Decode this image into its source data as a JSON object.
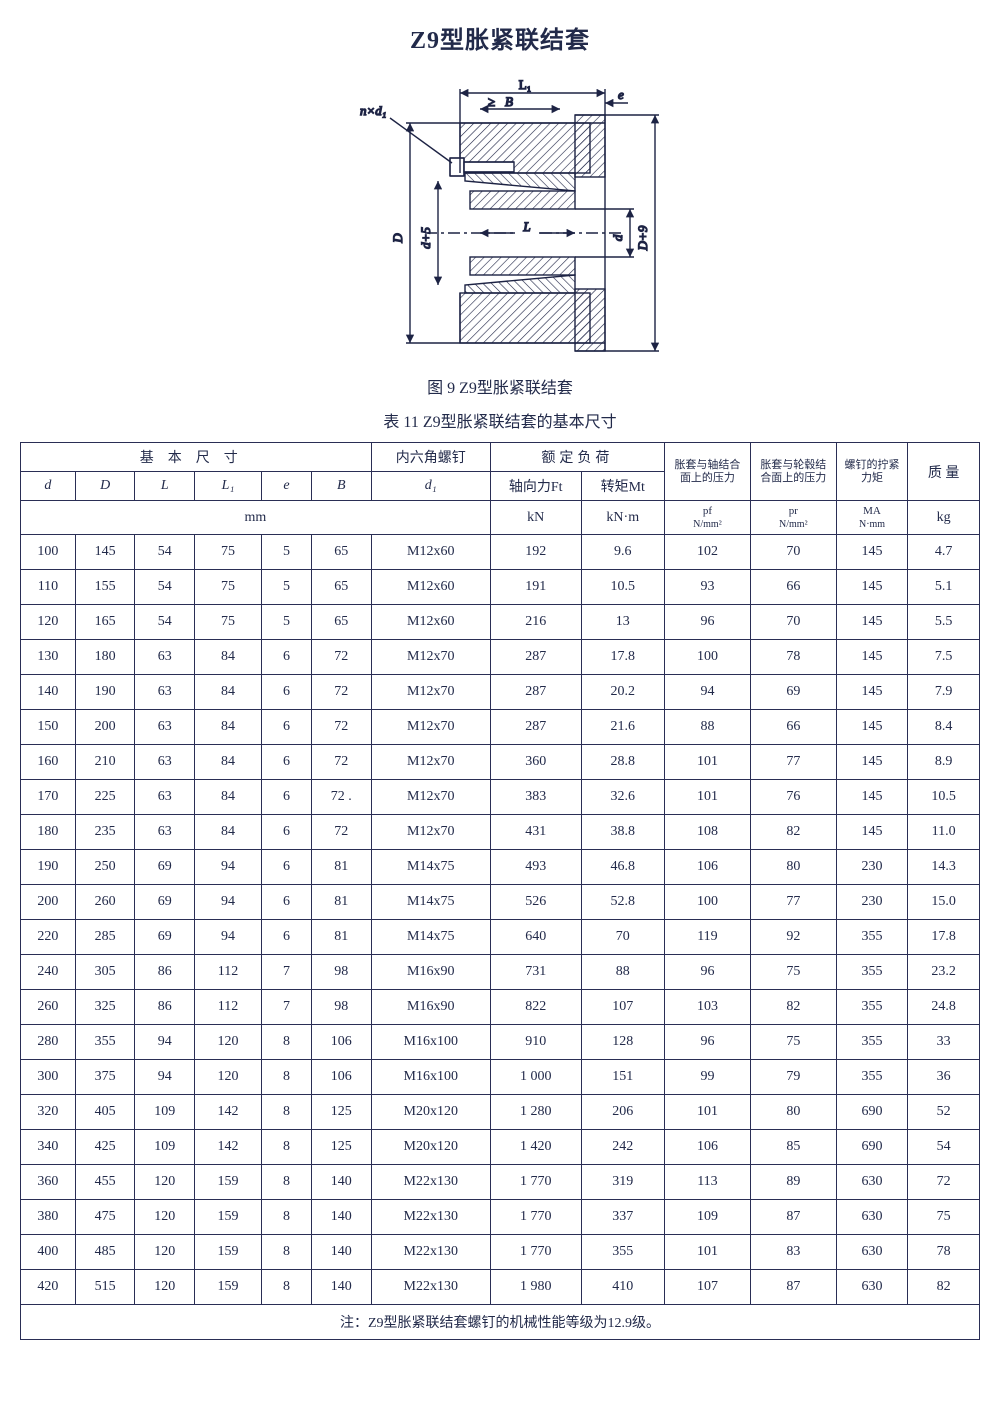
{
  "title": "Z9型胀紧联结套",
  "figure_caption": "图 9 Z9型胀紧联结套",
  "table_caption": "表 11 Z9型胀紧联结套的基本尺寸",
  "diagram": {
    "labels": {
      "nxd1": "n×d₁",
      "L1": "L₁",
      "B": "B",
      "arrow": "≥",
      "e": "e",
      "D": "D",
      "D_plus_9": "D+9",
      "d": "d",
      "d_plus_5": "d+5",
      "L": "L"
    },
    "stroke": "#1d2344",
    "hatch": "#1d2344",
    "line_width": 1.4
  },
  "header": {
    "basic": "基本尺寸",
    "screw": "内六角螺钉",
    "load": "额定负荷",
    "pf_title": "胀套与轴结合面上的压力",
    "pr_title": "胀套与轮毂结合面上的压力",
    "ma_title": "螺钉的拧紧力矩",
    "mass": "质 量",
    "d": "d",
    "D": "D",
    "L": "L",
    "L1": "L₁",
    "e": "e",
    "B": "B",
    "d1": "d₁",
    "Ft": "轴向力Ft",
    "Mt": "转矩Mt",
    "mm": "mm",
    "kN": "kN",
    "kNm": "kN·m",
    "pf_sym": "pf",
    "pr_sym": "pr",
    "Nmm2": "N/mm²",
    "MA": "MA",
    "Nmm": "N·mm",
    "kg": "kg"
  },
  "rows": [
    {
      "d": "100",
      "D": "145",
      "L": "54",
      "L1": "75",
      "e": "5",
      "B": "65",
      "d1": "M12x60",
      "Ft": "192",
      "Mt": "9.6",
      "pf": "102",
      "pr": "70",
      "MA": "145",
      "kg": "4.7"
    },
    {
      "d": "110",
      "D": "155",
      "L": "54",
      "L1": "75",
      "e": "5",
      "B": "65",
      "d1": "M12x60",
      "Ft": "191",
      "Mt": "10.5",
      "pf": "93",
      "pr": "66",
      "MA": "145",
      "kg": "5.1"
    },
    {
      "d": "120",
      "D": "165",
      "L": "54",
      "L1": "75",
      "e": "5",
      "B": "65",
      "d1": "M12x60",
      "Ft": "216",
      "Mt": "13",
      "pf": "96",
      "pr": "70",
      "MA": "145",
      "kg": "5.5"
    },
    {
      "d": "130",
      "D": "180",
      "L": "63",
      "L1": "84",
      "e": "6",
      "B": "72",
      "d1": "M12x70",
      "Ft": "287",
      "Mt": "17.8",
      "pf": "100",
      "pr": "78",
      "MA": "145",
      "kg": "7.5"
    },
    {
      "d": "140",
      "D": "190",
      "L": "63",
      "L1": "84",
      "e": "6",
      "B": "72",
      "d1": "M12x70",
      "Ft": "287",
      "Mt": "20.2",
      "pf": "94",
      "pr": "69",
      "MA": "145",
      "kg": "7.9"
    },
    {
      "d": "150",
      "D": "200",
      "L": "63",
      "L1": "84",
      "e": "6",
      "B": "72",
      "d1": "M12x70",
      "Ft": "287",
      "Mt": "21.6",
      "pf": "88",
      "pr": "66",
      "MA": "145",
      "kg": "8.4"
    },
    {
      "d": "160",
      "D": "210",
      "L": "63",
      "L1": "84",
      "e": "6",
      "B": "72",
      "d1": "M12x70",
      "Ft": "360",
      "Mt": "28.8",
      "pf": "101",
      "pr": "77",
      "MA": "145",
      "kg": "8.9"
    },
    {
      "d": "170",
      "D": "225",
      "L": "63",
      "L1": "84",
      "e": "6",
      "B": "72 .",
      "d1": "M12x70",
      "Ft": "383",
      "Mt": "32.6",
      "pf": "101",
      "pr": "76",
      "MA": "145",
      "kg": "10.5"
    },
    {
      "d": "180",
      "D": "235",
      "L": "63",
      "L1": "84",
      "e": "6",
      "B": "72",
      "d1": "M12x70",
      "Ft": "431",
      "Mt": "38.8",
      "pf": "108",
      "pr": "82",
      "MA": "145",
      "kg": "11.0"
    },
    {
      "d": "190",
      "D": "250",
      "L": "69",
      "L1": "94",
      "e": "6",
      "B": "81",
      "d1": "M14x75",
      "Ft": "493",
      "Mt": "46.8",
      "pf": "106",
      "pr": "80",
      "MA": "230",
      "kg": "14.3"
    },
    {
      "d": "200",
      "D": "260",
      "L": "69",
      "L1": "94",
      "e": "6",
      "B": "81",
      "d1": "M14x75",
      "Ft": "526",
      "Mt": "52.8",
      "pf": "100",
      "pr": "77",
      "MA": "230",
      "kg": "15.0"
    },
    {
      "d": "220",
      "D": "285",
      "L": "69",
      "L1": "94",
      "e": "6",
      "B": "81",
      "d1": "M14x75",
      "Ft": "640",
      "Mt": "70",
      "pf": "119",
      "pr": "92",
      "MA": "355",
      "kg": "17.8"
    },
    {
      "d": "240",
      "D": "305",
      "L": "86",
      "L1": "112",
      "e": "7",
      "B": "98",
      "d1": "M16x90",
      "Ft": "731",
      "Mt": "88",
      "pf": "96",
      "pr": "75",
      "MA": "355",
      "kg": "23.2"
    },
    {
      "d": "260",
      "D": "325",
      "L": "86",
      "L1": "112",
      "e": "7",
      "B": "98",
      "d1": "M16x90",
      "Ft": "822",
      "Mt": "107",
      "pf": "103",
      "pr": "82",
      "MA": "355",
      "kg": "24.8"
    },
    {
      "d": "280",
      "D": "355",
      "L": "94",
      "L1": "120",
      "e": "8",
      "B": "106",
      "d1": "M16x100",
      "Ft": "910",
      "Mt": "128",
      "pf": "96",
      "pr": "75",
      "MA": "355",
      "kg": "33"
    },
    {
      "d": "300",
      "D": "375",
      "L": "94",
      "L1": "120",
      "e": "8",
      "B": "106",
      "d1": "M16x100",
      "Ft": "1 000",
      "Mt": "151",
      "pf": "99",
      "pr": "79",
      "MA": "355",
      "kg": "36"
    },
    {
      "d": "320",
      "D": "405",
      "L": "109",
      "L1": "142",
      "e": "8",
      "B": "125",
      "d1": "M20x120",
      "Ft": "1 280",
      "Mt": "206",
      "pf": "101",
      "pr": "80",
      "MA": "690",
      "kg": "52"
    },
    {
      "d": "340",
      "D": "425",
      "L": "109",
      "L1": "142",
      "e": "8",
      "B": "125",
      "d1": "M20x120",
      "Ft": "1 420",
      "Mt": "242",
      "pf": "106",
      "pr": "85",
      "MA": "690",
      "kg": "54"
    },
    {
      "d": "360",
      "D": "455",
      "L": "120",
      "L1": "159",
      "e": "8",
      "B": "140",
      "d1": "M22x130",
      "Ft": "1 770",
      "Mt": "319",
      "pf": "113",
      "pr": "89",
      "MA": "630",
      "kg": "72"
    },
    {
      "d": "380",
      "D": "475",
      "L": "120",
      "L1": "159",
      "e": "8",
      "B": "140",
      "d1": "M22x130",
      "Ft": "1 770",
      "Mt": "337",
      "pf": "109",
      "pr": "87",
      "MA": "630",
      "kg": "75"
    },
    {
      "d": "400",
      "D": "485",
      "L": "120",
      "L1": "159",
      "e": "8",
      "B": "140",
      "d1": "M22x130",
      "Ft": "1 770",
      "Mt": "355",
      "pf": "101",
      "pr": "83",
      "MA": "630",
      "kg": "78"
    },
    {
      "d": "420",
      "D": "515",
      "L": "120",
      "L1": "159",
      "e": "8",
      "B": "140",
      "d1": "M22x130",
      "Ft": "1 980",
      "Mt": "410",
      "pf": "107",
      "pr": "87",
      "MA": "630",
      "kg": "82"
    }
  ],
  "footnote": "注：Z9型胀紧联结套螺钉的机械性能等级为12.9级。",
  "colors": {
    "text": "#222a4a",
    "border": "#2a2e55",
    "bg": "#ffffff"
  },
  "fonts": {
    "title_pt": 24,
    "caption_pt": 16,
    "table_pt": 14,
    "sub_pt": 11
  }
}
